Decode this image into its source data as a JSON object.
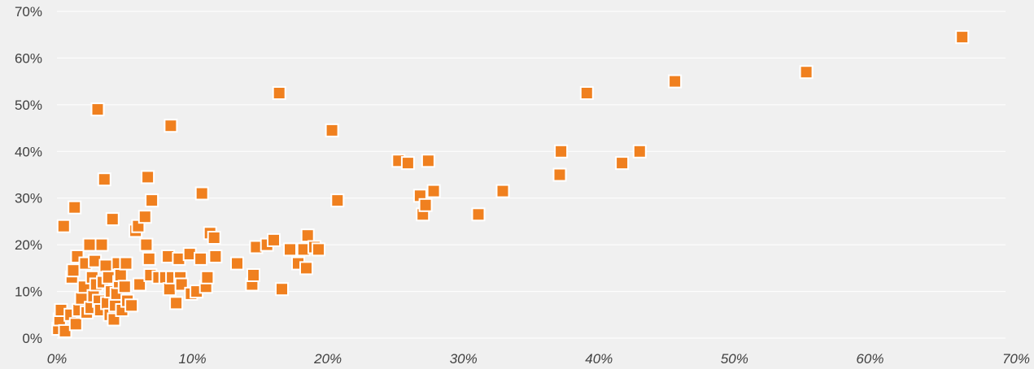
{
  "chart_data": {
    "type": "scatter",
    "title": "",
    "xlabel": "",
    "ylabel": "",
    "xlim": [
      0,
      70
    ],
    "ylim": [
      0,
      70
    ],
    "x_ticks": [
      0,
      10,
      20,
      30,
      40,
      50,
      60,
      70
    ],
    "y_ticks": [
      0,
      10,
      20,
      30,
      40,
      50,
      60,
      70
    ],
    "x_tick_labels": [
      "0%",
      "10%",
      "20%",
      "30%",
      "40%",
      "50%",
      "60%",
      "70%"
    ],
    "y_tick_labels": [
      "0%",
      "10%",
      "20%",
      "30%",
      "40%",
      "50%",
      "60%",
      "70%"
    ],
    "grid": "horizontal",
    "legend": "none",
    "point_color": "#f0801f",
    "series": [
      {
        "points": [
          [
            0.1,
            2.0
          ],
          [
            0.2,
            4.0
          ],
          [
            0.3,
            6.0
          ],
          [
            0.5,
            24.0
          ],
          [
            0.6,
            1.5
          ],
          [
            1.0,
            5.0
          ],
          [
            1.1,
            13.0
          ],
          [
            1.2,
            14.5
          ],
          [
            1.3,
            28.0
          ],
          [
            1.4,
            3.0
          ],
          [
            1.5,
            17.5
          ],
          [
            1.6,
            6.0
          ],
          [
            1.8,
            8.5
          ],
          [
            2.0,
            11.0
          ],
          [
            2.1,
            16.0
          ],
          [
            2.2,
            5.5
          ],
          [
            2.4,
            20.0
          ],
          [
            2.5,
            6.5
          ],
          [
            2.6,
            13.0
          ],
          [
            2.7,
            9.0
          ],
          [
            2.8,
            16.5
          ],
          [
            2.9,
            11.5
          ],
          [
            3.0,
            49.0
          ],
          [
            3.1,
            8.0
          ],
          [
            3.2,
            6.0
          ],
          [
            3.3,
            20.0
          ],
          [
            3.4,
            12.0
          ],
          [
            3.5,
            34.0
          ],
          [
            3.6,
            15.5
          ],
          [
            3.7,
            7.5
          ],
          [
            3.8,
            13.0
          ],
          [
            3.9,
            5.0
          ],
          [
            4.0,
            10.0
          ],
          [
            4.1,
            25.5
          ],
          [
            4.2,
            4.0
          ],
          [
            4.3,
            7.0
          ],
          [
            4.4,
            9.5
          ],
          [
            4.5,
            16.0
          ],
          [
            4.6,
            12.0
          ],
          [
            4.7,
            13.5
          ],
          [
            4.8,
            6.0
          ],
          [
            5.0,
            11.0
          ],
          [
            5.1,
            16.0
          ],
          [
            5.2,
            8.0
          ],
          [
            5.5,
            7.0
          ],
          [
            5.8,
            23.0
          ],
          [
            6.0,
            24.0
          ],
          [
            6.1,
            11.5
          ],
          [
            6.5,
            26.0
          ],
          [
            6.6,
            20.0
          ],
          [
            6.7,
            34.5
          ],
          [
            6.8,
            17.0
          ],
          [
            6.9,
            13.5
          ],
          [
            7.0,
            29.5
          ],
          [
            7.5,
            13.0
          ],
          [
            8.0,
            13.0
          ],
          [
            8.2,
            17.5
          ],
          [
            8.3,
            10.5
          ],
          [
            8.4,
            45.5
          ],
          [
            8.5,
            13.0
          ],
          [
            8.8,
            7.5
          ],
          [
            9.0,
            17.0
          ],
          [
            9.1,
            13.0
          ],
          [
            9.2,
            11.5
          ],
          [
            9.8,
            18.0
          ],
          [
            9.9,
            9.5
          ],
          [
            10.3,
            10.0
          ],
          [
            10.6,
            17.0
          ],
          [
            10.7,
            31.0
          ],
          [
            11.0,
            11.0
          ],
          [
            11.1,
            13.0
          ],
          [
            11.3,
            22.5
          ],
          [
            11.6,
            21.5
          ],
          [
            11.7,
            17.5
          ],
          [
            13.3,
            16.0
          ],
          [
            14.4,
            11.5
          ],
          [
            14.5,
            13.5
          ],
          [
            14.7,
            19.5
          ],
          [
            15.5,
            20.0
          ],
          [
            16.0,
            21.0
          ],
          [
            16.4,
            52.5
          ],
          [
            16.6,
            10.5
          ],
          [
            17.2,
            19.0
          ],
          [
            17.8,
            16.0
          ],
          [
            18.2,
            19.0
          ],
          [
            18.4,
            15.0
          ],
          [
            18.5,
            22.0
          ],
          [
            19.0,
            19.5
          ],
          [
            19.3,
            19.0
          ],
          [
            20.3,
            44.5
          ],
          [
            20.7,
            29.5
          ],
          [
            25.2,
            38.0
          ],
          [
            25.9,
            37.5
          ],
          [
            26.8,
            30.5
          ],
          [
            27.0,
            26.5
          ],
          [
            27.2,
            28.5
          ],
          [
            27.4,
            38.0
          ],
          [
            27.8,
            31.5
          ],
          [
            31.1,
            26.5
          ],
          [
            32.9,
            31.5
          ],
          [
            37.1,
            35.0
          ],
          [
            37.2,
            40.0
          ],
          [
            39.1,
            52.5
          ],
          [
            41.7,
            37.5
          ],
          [
            43.0,
            40.0
          ],
          [
            45.6,
            55.0
          ],
          [
            55.3,
            57.0
          ],
          [
            66.8,
            64.5
          ]
        ]
      }
    ]
  }
}
